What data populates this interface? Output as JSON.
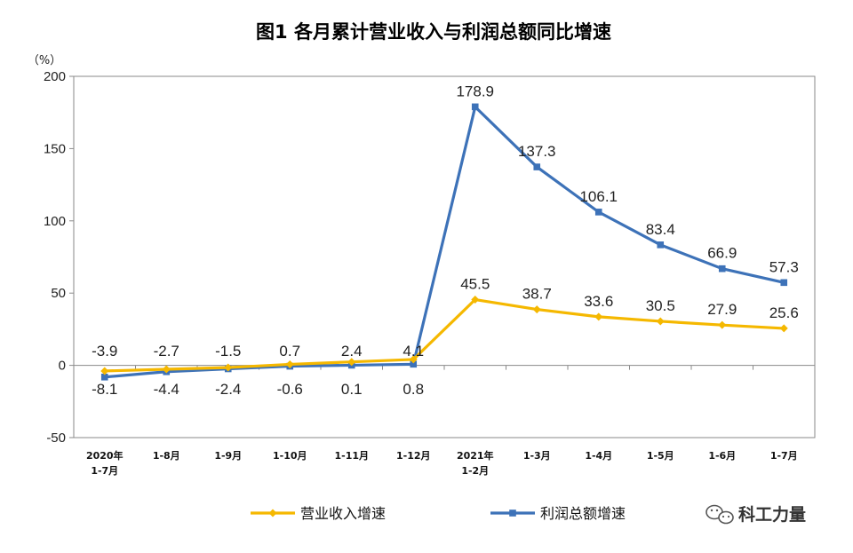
{
  "chart_data": {
    "type": "line",
    "title": "图1  各月累计营业收入与利润总额同比增速",
    "unit_label": "（%）",
    "categories": [
      [
        "2020年",
        "1-7月"
      ],
      [
        "1-8月"
      ],
      [
        "1-9月"
      ],
      [
        "1-10月"
      ],
      [
        "1-11月"
      ],
      [
        "1-12月"
      ],
      [
        "2021年",
        "1-2月"
      ],
      [
        "1-3月"
      ],
      [
        "1-4月"
      ],
      [
        "1-5月"
      ],
      [
        "1-6月"
      ],
      [
        "1-7月"
      ]
    ],
    "ylim": [
      -50,
      200
    ],
    "yticks": [
      -50,
      0,
      50,
      100,
      150,
      200
    ],
    "series": [
      {
        "name": "营业收入增速",
        "color": "#F5B800",
        "marker": "diamond",
        "values": [
          -3.9,
          -2.7,
          -1.5,
          0.7,
          2.4,
          4.1,
          45.5,
          38.7,
          33.6,
          30.5,
          27.9,
          25.6
        ],
        "labels": [
          "-3.9",
          "-2.7",
          "-1.5",
          "0.7",
          "2.4",
          "4.1",
          "45.5",
          "38.7",
          "33.6",
          "30.5",
          "27.9",
          "25.6"
        ]
      },
      {
        "name": "利润总额增速",
        "color": "#3D72B8",
        "marker": "square",
        "values": [
          -8.1,
          -4.4,
          -2.4,
          -0.6,
          0.1,
          0.8,
          178.9,
          137.3,
          106.1,
          83.4,
          66.9,
          57.3
        ],
        "labels": [
          "-8.1",
          "-4.4",
          "-2.4",
          "-0.6",
          "0.1",
          "0.8",
          "178.9",
          "137.3",
          "106.1",
          "83.4",
          "66.9",
          "57.3"
        ]
      }
    ],
    "legend_position": "bottom",
    "grid": false
  },
  "watermark": {
    "icon": "wechat-icon",
    "text": "科工力量"
  }
}
